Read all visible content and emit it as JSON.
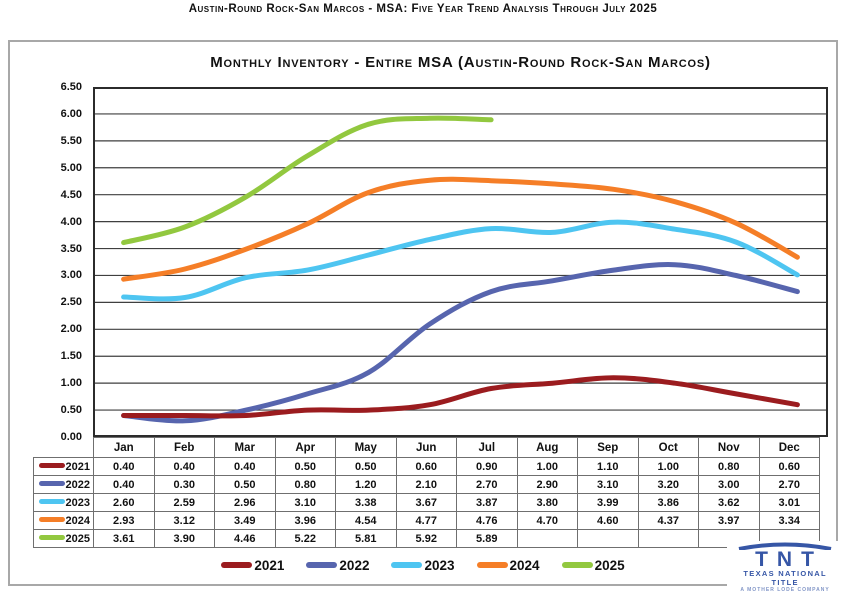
{
  "page": {
    "title": "Austin-Round Rock-San Marcos - MSA: Five Year Trend Analysis Through July 2025"
  },
  "chart": {
    "title": "Monthly Inventory - Entire MSA (Austin-Round Rock-San Marcos)"
  },
  "chart_data": {
    "type": "line",
    "title": "Monthly Inventory - Entire MSA (Austin-Round Rock-San Marcos)",
    "categories": [
      "Jan",
      "Feb",
      "Mar",
      "Apr",
      "May",
      "Jun",
      "Jul",
      "Aug",
      "Sep",
      "Oct",
      "Nov",
      "Dec"
    ],
    "series": [
      {
        "name": "2021",
        "color": "#9B1C1F",
        "values": [
          0.4,
          0.4,
          0.4,
          0.5,
          0.5,
          0.6,
          0.9,
          1.0,
          1.1,
          1.0,
          0.8,
          0.6
        ]
      },
      {
        "name": "2022",
        "color": "#5765AE",
        "values": [
          0.4,
          0.3,
          0.5,
          0.8,
          1.2,
          2.1,
          2.7,
          2.9,
          3.1,
          3.2,
          3.0,
          2.7
        ]
      },
      {
        "name": "2023",
        "color": "#4EC5F1",
        "values": [
          2.6,
          2.59,
          2.96,
          3.1,
          3.38,
          3.67,
          3.87,
          3.8,
          3.99,
          3.86,
          3.62,
          3.01
        ]
      },
      {
        "name": "2024",
        "color": "#F57E27",
        "values": [
          2.93,
          3.12,
          3.49,
          3.96,
          4.54,
          4.77,
          4.76,
          4.7,
          4.6,
          4.37,
          3.97,
          3.34
        ]
      },
      {
        "name": "2025",
        "color": "#92C83F",
        "values": [
          3.61,
          3.9,
          4.46,
          5.22,
          5.81,
          5.92,
          5.89,
          null,
          null,
          null,
          null,
          null
        ]
      }
    ],
    "ylim": [
      0,
      6.5
    ],
    "ytick_step": 0.5,
    "yticks": [
      "6.50",
      "6.00",
      "5.50",
      "5.00",
      "4.50",
      "4.00",
      "3.50",
      "3.00",
      "2.50",
      "2.00",
      "1.50",
      "1.00",
      "0.50",
      "0.00"
    ],
    "grid": "horizontal",
    "legend_position": "bottom",
    "gridline_color": "#3f3f3f",
    "plot_border_color": "#2b2b2b"
  },
  "logo": {
    "acronym": "TNT",
    "name": "TEXAS NATIONAL TITLE",
    "tagline": "A MOTHER LODE COMPANY"
  }
}
